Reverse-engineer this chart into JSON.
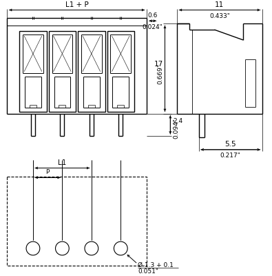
{
  "bg_color": "#ffffff",
  "line_color": "#000000",
  "font_size": 7.5,
  "small_font": 6.5,
  "fig_width": 3.95,
  "fig_height": 4.0,
  "annotations": {
    "l1_p": "L1 + P",
    "dim_06": "0.6",
    "dim_024": "0.024\"",
    "dim_11": "11",
    "dim_0433": "0.433\"",
    "dim_24": "2.4",
    "dim_0094": "0.094\"",
    "dim_17": "17",
    "dim_0669": "0.669\"",
    "dim_55": "5.5",
    "dim_0217": "0.217\"",
    "l1": "L1",
    "p": "P",
    "hole": "Ø 1.3 + 0.1",
    "hole_inch": "0.051\""
  }
}
